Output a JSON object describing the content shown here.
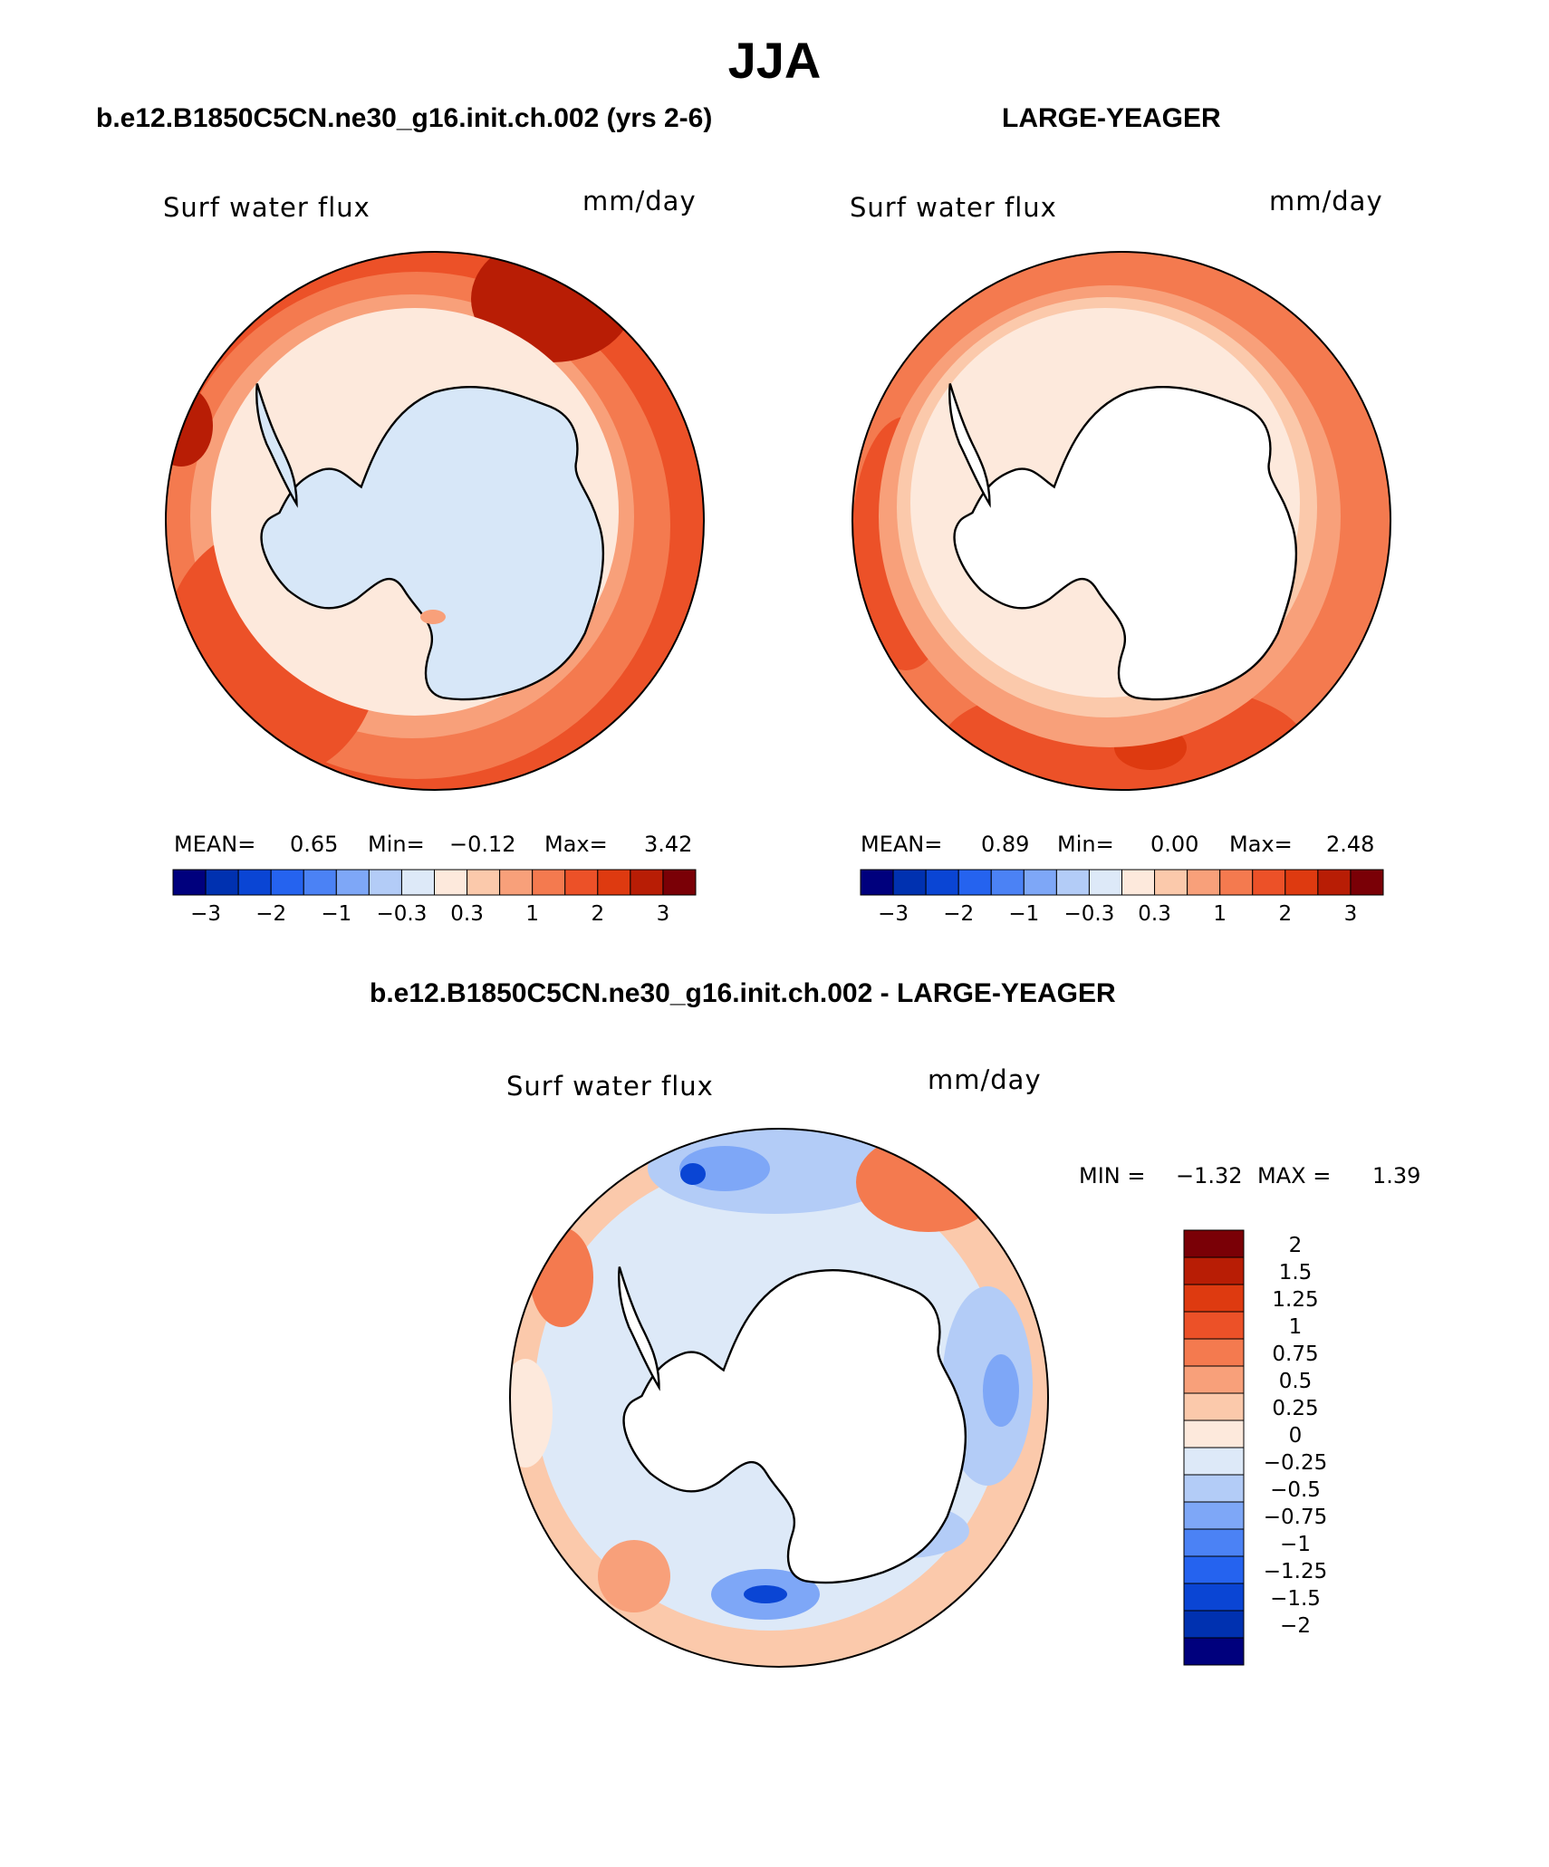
{
  "title": "JJA",
  "panels": [
    {
      "case": "b.e12.B1850C5CN.ne30_g16.init.ch.002 (yrs 2-6)",
      "variable": "Surf water flux",
      "units": "mm/day",
      "stats": {
        "mean_label": "MEAN=",
        "mean": "0.65",
        "min_label": "Min=",
        "min": "−0.12",
        "max_label": "Max=",
        "max": "3.42"
      }
    },
    {
      "case": "LARGE-YEAGER",
      "variable": "Surf water flux",
      "units": "mm/day",
      "stats": {
        "mean_label": "MEAN=",
        "mean": "0.89",
        "min_label": "Min=",
        "min": "0.00",
        "max_label": "Max=",
        "max": "2.48"
      }
    },
    {
      "case": "b.e12.B1850C5CN.ne30_g16.init.ch.002 - LARGE-YEAGER",
      "variable": "Surf water flux",
      "units": "mm/day",
      "stats": {
        "min_label": "MIN =",
        "min": "−1.32",
        "max_label": "MAX =",
        "max": "1.39"
      }
    }
  ],
  "colorbar_top": {
    "tick_labels": [
      "−3",
      "−2",
      "−1",
      "−0.3",
      "0.3",
      "1",
      "2",
      "3"
    ],
    "colors": [
      "#00007d",
      "#0031b0",
      "#0a45d4",
      "#2563ef",
      "#4b82f5",
      "#7ea7f7",
      "#b3ccf7",
      "#dde9f8",
      "#fde9dc",
      "#fbc9ab",
      "#f8a07a",
      "#f47a4f",
      "#ec5128",
      "#de3a10",
      "#b81d05",
      "#7a0006"
    ]
  },
  "colorbar_diff": {
    "tick_labels": [
      "2",
      "1.5",
      "1.25",
      "1",
      "0.75",
      "0.5",
      "0.25",
      "0",
      "−0.25",
      "−0.5",
      "−0.75",
      "−1",
      "−1.25",
      "−1.5",
      "−2"
    ],
    "colors": [
      "#7a0006",
      "#b81d05",
      "#de3a10",
      "#ec5128",
      "#f47a4f",
      "#f8a07a",
      "#fbc9ab",
      "#fde9dc",
      "#dde9f8",
      "#b3ccf7",
      "#7ea7f7",
      "#4b82f5",
      "#2563ef",
      "#0a45d4",
      "#0031b0",
      "#00007d"
    ]
  },
  "map_colors": {
    "ocean_high": "#ec5128",
    "ocean_mid": "#f47a4f",
    "ocean_low": "#f8a07a",
    "ice_ring": "#fde9dc",
    "land_model": "#d7e7f8",
    "land_obs": "#ffffff",
    "diff_base": "#dde9f8",
    "diff_neg": "#7ea7f7",
    "diff_strong_neg": "#0a45d4",
    "diff_pos": "#fbc9ab",
    "diff_strong_pos": "#ec5128"
  }
}
